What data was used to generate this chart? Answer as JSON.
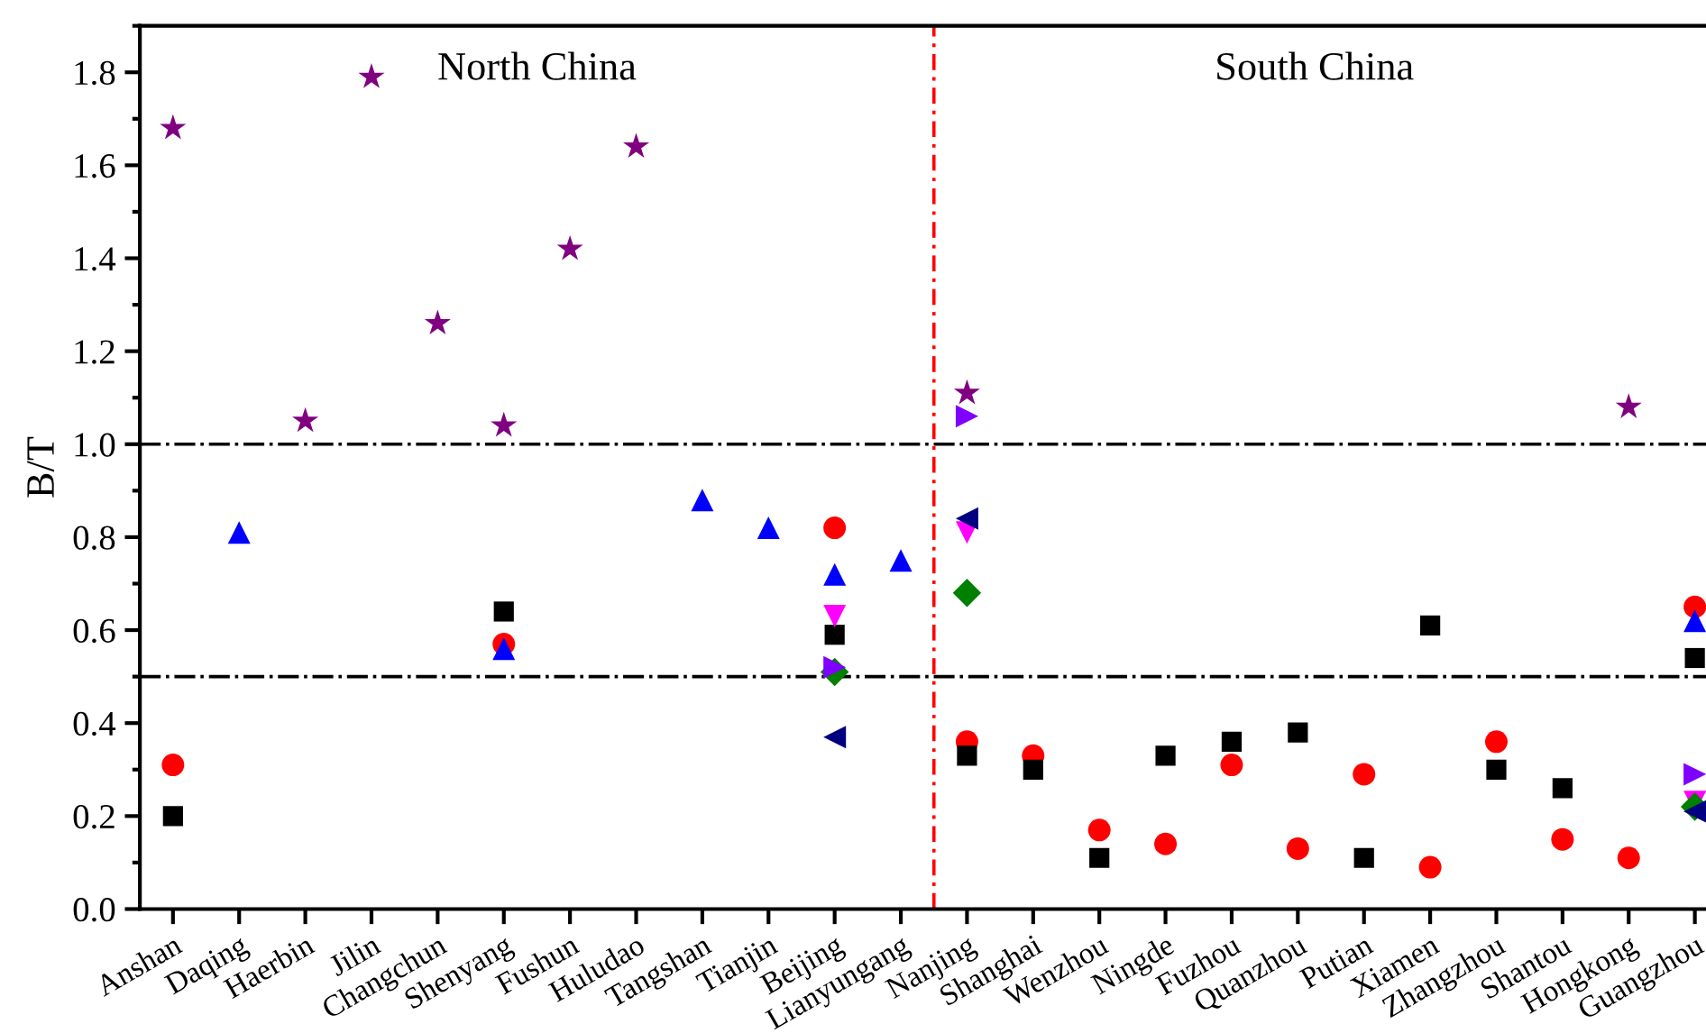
{
  "chart_data": {
    "type": "scatter",
    "ylabel": "B/T",
    "categories": [
      "Anshan",
      "Daqing",
      "Haerbin",
      "Jilin",
      "Changchun",
      "Shenyang",
      "Fushun",
      "Huludao",
      "Tangshan",
      "Tianjin",
      "Beijing",
      "Lianyungang",
      "Nanjing",
      "Shanghai",
      "Wenzhou",
      "Ningde",
      "Fuzhou",
      "Quanzhou",
      "Putian",
      "Xiamen",
      "Zhangzhou",
      "Shantou",
      "Hongkong",
      "Guangzhou"
    ],
    "series": [
      {
        "color": "#800080",
        "marker": "star",
        "values": [
          1.68,
          null,
          1.05,
          1.79,
          1.26,
          1.04,
          1.42,
          1.64,
          null,
          null,
          null,
          null,
          1.11,
          null,
          null,
          null,
          null,
          null,
          null,
          null,
          null,
          null,
          1.08,
          null
        ]
      },
      {
        "color": "#ff0000",
        "marker": "circle",
        "values": [
          0.31,
          null,
          null,
          null,
          null,
          0.57,
          null,
          null,
          null,
          null,
          0.82,
          null,
          0.36,
          0.33,
          0.17,
          0.14,
          0.31,
          0.13,
          0.29,
          0.09,
          0.36,
          0.15,
          0.11,
          0.65
        ]
      },
      {
        "color": "#000000",
        "marker": "square",
        "values": [
          0.2,
          null,
          null,
          null,
          null,
          0.64,
          null,
          null,
          null,
          null,
          0.59,
          null,
          0.33,
          0.3,
          0.11,
          0.33,
          0.36,
          0.38,
          0.11,
          0.61,
          0.3,
          0.26,
          null,
          0.54
        ]
      },
      {
        "color": "#0000ff",
        "marker": "triangle",
        "values": [
          null,
          0.81,
          null,
          null,
          null,
          0.56,
          null,
          null,
          0.88,
          0.82,
          0.72,
          0.75,
          null,
          null,
          null,
          null,
          null,
          null,
          null,
          null,
          null,
          null,
          null,
          0.62
        ]
      },
      {
        "color": "#ff00ff",
        "marker": "triangle_down",
        "values": [
          null,
          null,
          null,
          null,
          null,
          null,
          null,
          null,
          null,
          null,
          0.63,
          null,
          0.81,
          null,
          null,
          null,
          null,
          null,
          null,
          null,
          null,
          null,
          null,
          0.23
        ]
      },
      {
        "color": "#008000",
        "marker": "diamond",
        "values": [
          null,
          null,
          null,
          null,
          null,
          null,
          null,
          null,
          null,
          null,
          0.51,
          null,
          0.68,
          null,
          null,
          null,
          null,
          null,
          null,
          null,
          null,
          null,
          null,
          0.22
        ]
      },
      {
        "color": "#000080",
        "marker": "triangle_left",
        "values": [
          null,
          null,
          null,
          null,
          null,
          null,
          null,
          null,
          null,
          null,
          0.37,
          null,
          0.84,
          null,
          null,
          null,
          null,
          null,
          null,
          null,
          null,
          null,
          null,
          0.21
        ]
      },
      {
        "color": "#8000ff",
        "marker": "triangle_right",
        "values": [
          null,
          null,
          null,
          null,
          null,
          null,
          null,
          null,
          null,
          null,
          0.52,
          null,
          1.06,
          null,
          null,
          null,
          null,
          null,
          null,
          null,
          null,
          null,
          null,
          0.29
        ]
      }
    ],
    "ylim": [
      0,
      1.9
    ],
    "yticks": [
      {
        "value": 0,
        "label": "0.0"
      },
      {
        "value": 0.2,
        "label": "0.2"
      },
      {
        "value": 0.4,
        "label": "0.4"
      },
      {
        "value": 0.6,
        "label": "0.6"
      },
      {
        "value": 0.8,
        "label": "0.8"
      },
      {
        "value": 1.0,
        "label": "1.0"
      },
      {
        "value": 1.2,
        "label": "1.2"
      },
      {
        "value": 1.4,
        "label": "1.4"
      },
      {
        "value": 1.6,
        "label": "1.6"
      },
      {
        "value": 1.8,
        "label": "1.8"
      }
    ],
    "ref_lines": [
      {
        "axis": "y",
        "value": 1.0,
        "color": "#000000",
        "line_style": "dashdot"
      },
      {
        "axis": "y",
        "value": 0.5,
        "color": "#000000",
        "line_style": "dashdot"
      }
    ],
    "annotations": [
      "North China",
      "South China"
    ],
    "grid": false,
    "legend": false
  }
}
